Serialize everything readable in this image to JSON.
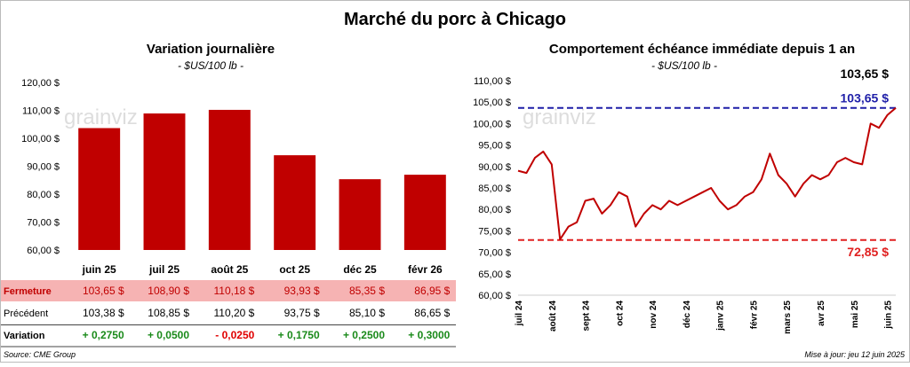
{
  "title": "Marché du porc à Chicago",
  "watermark": "grainviz",
  "source": "Source: CME Group",
  "updated": "Mise à jour: jeu 12 juin 2025",
  "chart_data": [
    {
      "type": "bar",
      "title": "Variation journalière",
      "subtitle": "- $US/100 lb -",
      "categories": [
        "juin 25",
        "juil 25",
        "août 25",
        "oct 25",
        "déc 25",
        "févr 26"
      ],
      "values": [
        103.65,
        108.9,
        110.18,
        93.93,
        85.35,
        86.95
      ],
      "value_labels": [
        "103,65 $",
        "108,90 $",
        "110,18 $",
        "93,93 $",
        "85,35 $",
        "86,95 $"
      ],
      "color": "#c00000",
      "grid": false,
      "ylim": [
        60,
        120
      ],
      "yticks": [
        {
          "value": 60,
          "label": "60,00 $"
        },
        {
          "value": 70,
          "label": "70,00 $"
        },
        {
          "value": 80,
          "label": "80,00 $"
        },
        {
          "value": 90,
          "label": "90,00 $"
        },
        {
          "value": 100,
          "label": "100,00 $"
        },
        {
          "value": 110,
          "label": "110,00 $"
        },
        {
          "value": 120,
          "label": "120,00 $"
        }
      ],
      "table": {
        "rows": [
          {
            "label": "Fermeture"
          },
          {
            "label": "Précédent",
            "cells": [
              "103,38 $",
              "108,85 $",
              "110,20 $",
              "93,75 $",
              "85,10 $",
              "86,65 $"
            ]
          },
          {
            "label": "Variation",
            "cells": [
              "+ 0,2750",
              "+ 0,0500",
              "- 0,0250",
              "+ 0,1750",
              "+ 0,2500",
              "+ 0,3000"
            ]
          }
        ]
      }
    },
    {
      "type": "line",
      "title": "Comportement échéance immédiate depuis 1 an",
      "subtitle": "- $US/100 lb -",
      "categories": [
        "juil 24",
        null,
        null,
        null,
        "août 24",
        null,
        null,
        null,
        "sept 24",
        null,
        null,
        null,
        "oct 24",
        null,
        null,
        null,
        "nov 24",
        null,
        null,
        null,
        "déc 24",
        null,
        null,
        null,
        "janv 25",
        null,
        null,
        null,
        "févr 25",
        null,
        null,
        null,
        "mars 25",
        null,
        null,
        null,
        "avr 25",
        null,
        null,
        null,
        "mai 25",
        null,
        null,
        null,
        "juin 25",
        null
      ],
      "values": [
        89,
        88.5,
        92,
        93.5,
        90.5,
        73,
        76,
        77,
        82,
        82.5,
        79,
        81,
        84,
        83,
        76,
        79,
        81,
        80,
        82,
        81,
        82,
        83,
        84,
        85,
        82,
        80,
        81,
        83,
        84,
        87,
        93,
        88,
        86,
        83,
        86,
        88,
        87,
        88,
        91,
        92,
        91,
        90.5,
        100,
        99,
        102,
        103.65
      ],
      "color": "#c00000",
      "grid": false,
      "ylim": [
        60,
        110
      ],
      "yticks": [
        {
          "value": 60,
          "label": "60,00 $"
        },
        {
          "value": 65,
          "label": "65,00 $"
        },
        {
          "value": 70,
          "label": "70,00 $"
        },
        {
          "value": 75,
          "label": "75,00 $"
        },
        {
          "value": 80,
          "label": "80,00 $"
        },
        {
          "value": 85,
          "label": "85,00 $"
        },
        {
          "value": 90,
          "label": "90,00 $"
        },
        {
          "value": 95,
          "label": "95,00 $"
        },
        {
          "value": 100,
          "label": "100,00 $"
        },
        {
          "value": 105,
          "label": "105,00 $"
        },
        {
          "value": 110,
          "label": "110,00 $"
        }
      ],
      "ref_lines": [
        {
          "value": 103.65,
          "label": "103,65 $",
          "color": "#1f1fa8"
        },
        {
          "value": 72.85,
          "label": "72,85 $",
          "color": "#e02020"
        }
      ],
      "last_value_label": "103,65 $"
    }
  ]
}
